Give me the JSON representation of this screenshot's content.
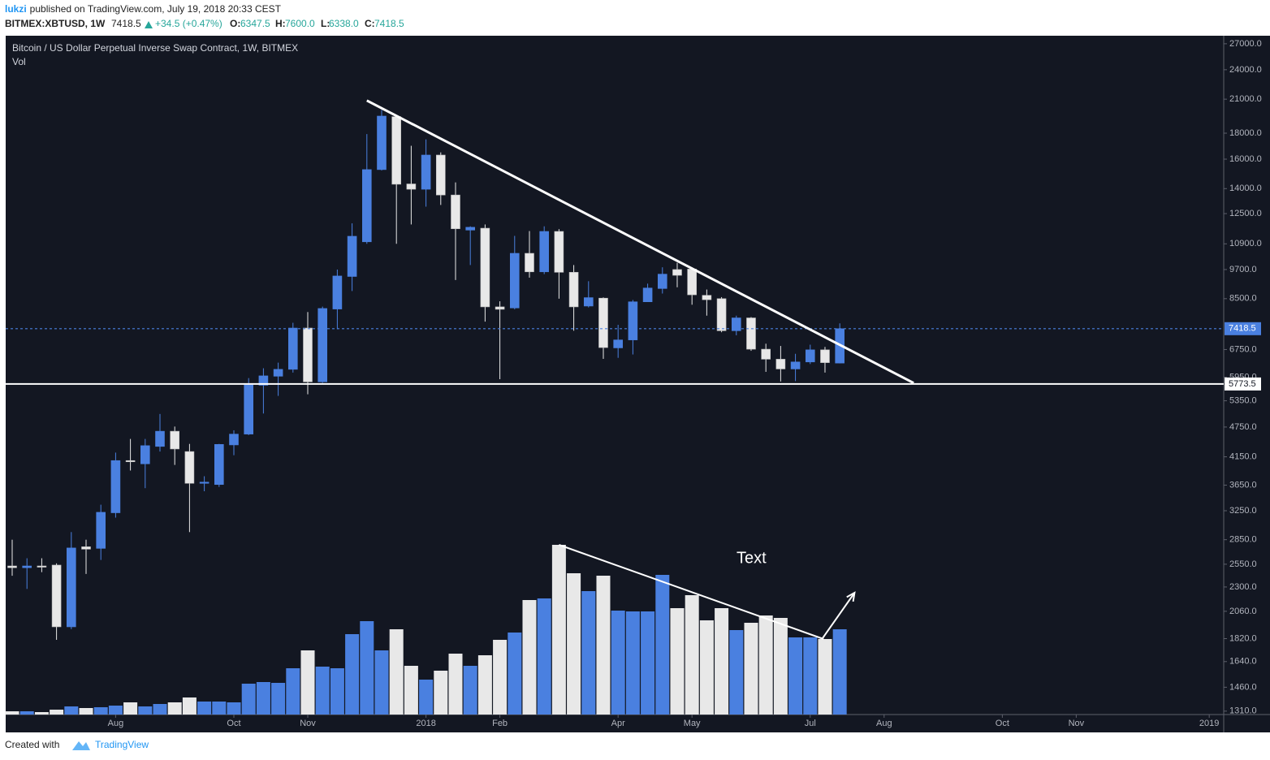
{
  "header": {
    "user": "lukzi",
    "published": "published on TradingView.com, July 19, 2018 20:33 CEST",
    "symbol": "BITMEX:XBTUSD, 1W",
    "last": "7418.5",
    "change": "+34.5 (+0.47%)",
    "ohlc": [
      {
        "label": "O:",
        "value": "6347.5"
      },
      {
        "label": "H:",
        "value": "7600.0"
      },
      {
        "label": "L:",
        "value": "6338.0"
      },
      {
        "label": "C:",
        "value": "7418.5"
      }
    ]
  },
  "chart_data": {
    "type": "candlestick",
    "title": "Bitcoin / US Dollar Perpetual Inverse Swap Contract, 1W, BITMEX",
    "volume_label": "Vol",
    "annotation": "Text",
    "open": [
      2530,
      2510,
      2530,
      2540,
      1920,
      2760,
      2740,
      3220,
      4080,
      4020,
      4350,
      4660,
      4250,
      3680,
      3660,
      4380,
      4600,
      5740,
      5980,
      6170,
      7440,
      5830,
      8110,
      9400,
      11000,
      15260,
      19400,
      14300,
      13960,
      16300,
      13600,
      11600,
      11700,
      8190,
      8150,
      10440,
      9600,
      11530,
      9580,
      8220,
      8520,
      6800,
      7050,
      8380,
      8900,
      9700,
      9720,
      8630,
      8500,
      7350,
      7790,
      6760,
      6460,
      6180,
      6380,
      6740,
      6347.5
    ],
    "high": [
      2850,
      2620,
      2620,
      2560,
      2950,
      2850,
      3340,
      4230,
      4500,
      4500,
      5040,
      4760,
      4400,
      3800,
      4400,
      4680,
      5930,
      6200,
      6360,
      7620,
      8000,
      8200,
      9700,
      11960,
      17930,
      20000,
      19500,
      17000,
      17500,
      16500,
      14400,
      11800,
      11900,
      8400,
      11300,
      11550,
      11800,
      11650,
      9900,
      9200,
      8550,
      7550,
      8450,
      9100,
      9800,
      10000,
      9800,
      8860,
      8560,
      7870,
      7820,
      6930,
      6860,
      6620,
      6900,
      6830,
      7600
    ],
    "low": [
      2420,
      2280,
      2460,
      1810,
      1900,
      2440,
      2600,
      3150,
      3900,
      3600,
      4250,
      4000,
      2950,
      3550,
      3620,
      4180,
      4580,
      5050,
      5470,
      6080,
      5510,
      5800,
      7400,
      8800,
      10900,
      15200,
      10900,
      11900,
      12900,
      13000,
      9250,
      9900,
      7660,
      5900,
      8100,
      9350,
      9500,
      8500,
      7350,
      8170,
      6470,
      6500,
      6600,
      8380,
      8700,
      8950,
      8270,
      7870,
      7300,
      7200,
      6710,
      6100,
      5840,
      5850,
      6320,
      6080,
      6338
    ],
    "close": [
      2510,
      2530,
      2520,
      1920,
      2745,
      2730,
      3227,
      4080,
      4060,
      4365,
      4660,
      4300,
      3680,
      3700,
      4390,
      4600,
      5750,
      5990,
      6170,
      7440,
      5830,
      8130,
      9420,
      11280,
      15260,
      19450,
      14280,
      13960,
      16300,
      13600,
      11670,
      11750,
      8190,
      8100,
      10440,
      9600,
      11530,
      9580,
      8190,
      8540,
      6810,
      7050,
      8380,
      8920,
      9500,
      9450,
      8650,
      8460,
      7350,
      7790,
      6760,
      6460,
      6180,
      6380,
      6740,
      6360,
      7418.5
    ],
    "volume": [
      4,
      4,
      3,
      6,
      10,
      8,
      9,
      11,
      15,
      10,
      13,
      15,
      21,
      16,
      16,
      15,
      38,
      40,
      39,
      57,
      79,
      59,
      57,
      99,
      115,
      79,
      105,
      60,
      43,
      54,
      75,
      60,
      73,
      92,
      101,
      141,
      143,
      209,
      174,
      152,
      171,
      128,
      127,
      127,
      172,
      131,
      147,
      116,
      131,
      104,
      113,
      122,
      119,
      95,
      95,
      93,
      105
    ],
    "vlim": [
      0,
      836
    ],
    "up_color": "#4a80e0",
    "down_color": "#e8e8e8",
    "ylim": [
      1290,
      28000
    ],
    "log_scale": true,
    "yticks": [
      {
        "value": 27000,
        "label": "27000.0"
      },
      {
        "value": 24000,
        "label": "24000.0"
      },
      {
        "value": 21000,
        "label": "21000.0"
      },
      {
        "value": 18000,
        "label": "18000.0"
      },
      {
        "value": 16000,
        "label": "16000.0"
      },
      {
        "value": 14000,
        "label": "14000.0"
      },
      {
        "value": 12500,
        "label": "12500.0"
      },
      {
        "value": 10900,
        "label": "10900.0"
      },
      {
        "value": 9700,
        "label": "9700.0"
      },
      {
        "value": 8500,
        "label": "8500.0"
      },
      {
        "value": 6750,
        "label": "6750.0"
      },
      {
        "value": 5950,
        "label": "5950.0"
      },
      {
        "value": 5350,
        "label": "5350.0"
      },
      {
        "value": 4750,
        "label": "4750.0"
      },
      {
        "value": 4150,
        "label": "4150.0"
      },
      {
        "value": 3650,
        "label": "3650.0"
      },
      {
        "value": 3250,
        "label": "3250.0"
      },
      {
        "value": 2850,
        "label": "2850.0"
      },
      {
        "value": 2550,
        "label": "2550.0"
      },
      {
        "value": 2300,
        "label": "2300.0"
      },
      {
        "value": 2060,
        "label": "2060.0"
      },
      {
        "value": 1820,
        "label": "1820.0"
      },
      {
        "value": 1640,
        "label": "1640.0"
      },
      {
        "value": 1460,
        "label": "1460.0"
      },
      {
        "value": 1310,
        "label": "1310.0"
      }
    ],
    "xlim": [
      -0.44,
      81.98
    ],
    "xticks": [
      {
        "value": 7,
        "label": "Aug"
      },
      {
        "value": 15,
        "label": "Oct"
      },
      {
        "value": 20,
        "label": "Nov"
      },
      {
        "value": 28,
        "label": "2018"
      },
      {
        "value": 33,
        "label": "Feb"
      },
      {
        "value": 41,
        "label": "Apr"
      },
      {
        "value": 46,
        "label": "May"
      },
      {
        "value": 54,
        "label": "Jul"
      },
      {
        "value": 59,
        "label": "Aug"
      },
      {
        "value": 67,
        "label": "Oct"
      },
      {
        "value": 72,
        "label": "Nov"
      },
      {
        "value": 81,
        "label": "2019"
      }
    ],
    "price_lines": [
      5773.5,
      7418.5
    ],
    "price_line_styles": [
      "solid",
      "dotted"
    ],
    "trend_line": {
      "x": [
        24,
        61
      ],
      "y": [
        20870,
        5800
      ]
    },
    "volume_trend_line": {
      "x": [
        37,
        54.9
      ],
      "y": [
        209,
        93
      ]
    },
    "volume_arrow": {
      "x": [
        54.8,
        57
      ],
      "y": [
        93,
        150
      ]
    }
  },
  "footer": {
    "created": "Created with",
    "brand": "TradingView"
  }
}
